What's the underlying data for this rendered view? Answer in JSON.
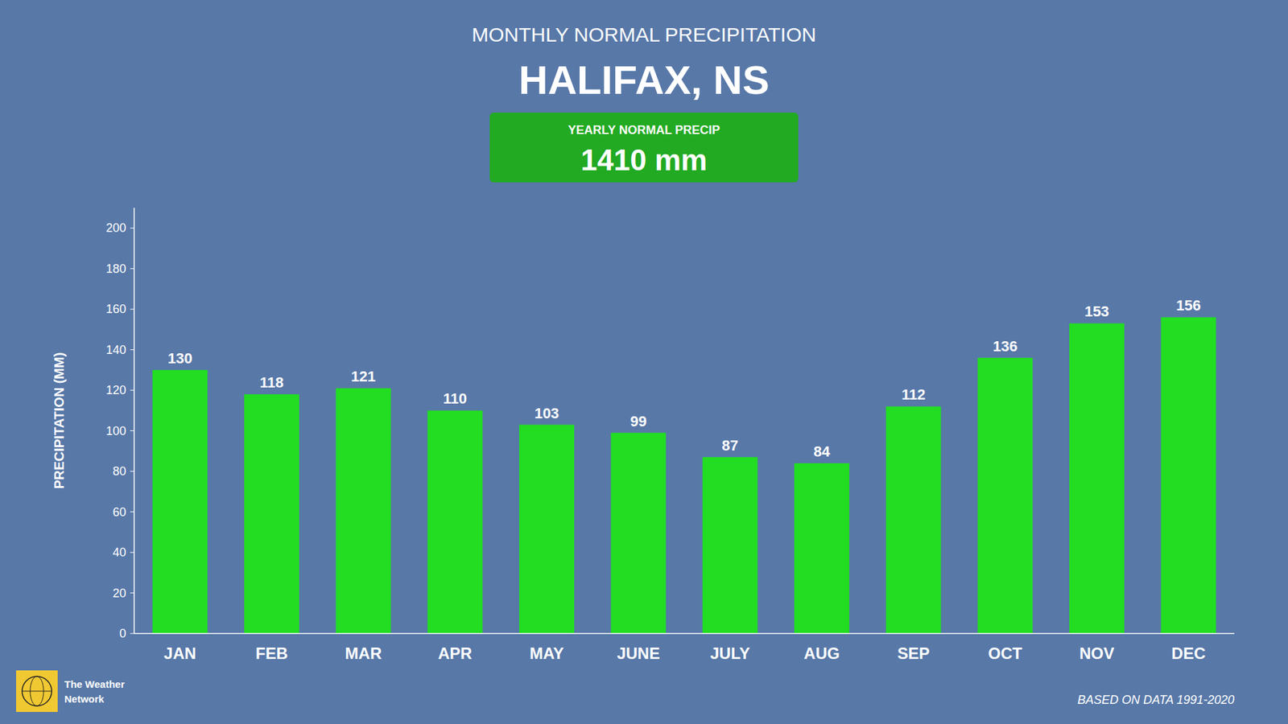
{
  "chart_data": {
    "type": "bar",
    "title": "MONTHLY NORMAL PRECIPITATION",
    "subtitle": "HALIFAX, NS",
    "y_label": "PRECIPITATION (MM)",
    "categories": [
      "JAN",
      "FEB",
      "MAR",
      "APR",
      "MAY",
      "JUNE",
      "JULY",
      "AUG",
      "SEP",
      "OCT",
      "NOV",
      "DEC"
    ],
    "values": [
      130,
      118,
      121,
      110,
      103,
      99,
      87,
      84,
      112,
      136,
      153,
      156
    ],
    "color": "#22DD22",
    "ylim": [
      0,
      210
    ],
    "yticks": [
      0,
      20,
      40,
      60,
      80,
      100,
      120,
      140,
      160,
      180,
      200
    ],
    "grid": false,
    "data_labels": true,
    "annotations": [
      "YEARLY NORMAL PRECIP",
      "1410 mm",
      "BASED ON DATA 1991-2020",
      "The Weather",
      "Network"
    ]
  }
}
